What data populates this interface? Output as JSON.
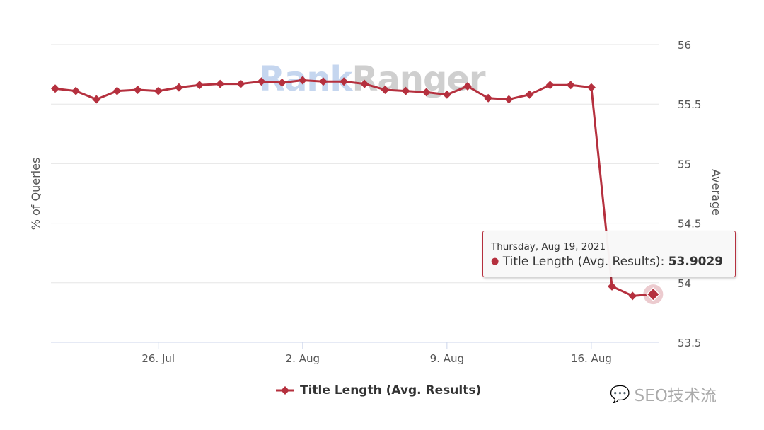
{
  "brand_watermark": {
    "part1": "Rank",
    "part2": "Ranger"
  },
  "footer_watermark": {
    "icon": "wechat-icon",
    "text": "SEO技术流"
  },
  "tooltip": {
    "date": "Thursday, Aug 19, 2021",
    "series": "Title Length (Avg. Results):",
    "value": "53.9029"
  },
  "colors": {
    "series": "#b5303e",
    "grid": "#e6e6e6",
    "axis": "#ccd6eb"
  },
  "chart_data": {
    "type": "line",
    "title": "",
    "left_axis_title": "% of Queries",
    "ylabel": "Average",
    "ylim": [
      53.5,
      56
    ],
    "y_ticks": [
      "53.5",
      "54",
      "54.5",
      "55",
      "55.5",
      "56"
    ],
    "x_ticks": [
      {
        "label": "26. Jul",
        "index": 5
      },
      {
        "label": "2. Aug",
        "index": 12
      },
      {
        "label": "9. Aug",
        "index": 19
      },
      {
        "label": "16. Aug",
        "index": 26
      }
    ],
    "legend": {
      "label": "Title Length (Avg. Results)",
      "position": "bottom"
    },
    "x": [
      "Jul 21",
      "Jul 22",
      "Jul 23",
      "Jul 24",
      "Jul 25",
      "Jul 26",
      "Jul 27",
      "Jul 28",
      "Jul 29",
      "Jul 30",
      "Jul 31",
      "Aug 1",
      "Aug 2",
      "Aug 3",
      "Aug 4",
      "Aug 5",
      "Aug 6",
      "Aug 7",
      "Aug 8",
      "Aug 9",
      "Aug 10",
      "Aug 11",
      "Aug 12",
      "Aug 13",
      "Aug 14",
      "Aug 15",
      "Aug 16",
      "Aug 17",
      "Aug 18",
      "Aug 19"
    ],
    "series": [
      {
        "name": "Title Length (Avg. Results)",
        "values": [
          55.63,
          55.61,
          55.54,
          55.61,
          55.62,
          55.61,
          55.64,
          55.66,
          55.67,
          55.67,
          55.69,
          55.68,
          55.7,
          55.69,
          55.69,
          55.67,
          55.62,
          55.61,
          55.6,
          55.58,
          55.65,
          55.55,
          55.54,
          55.58,
          55.66,
          55.66,
          55.64,
          53.97,
          53.89,
          53.9029
        ]
      }
    ],
    "highlighted_index": 29
  }
}
